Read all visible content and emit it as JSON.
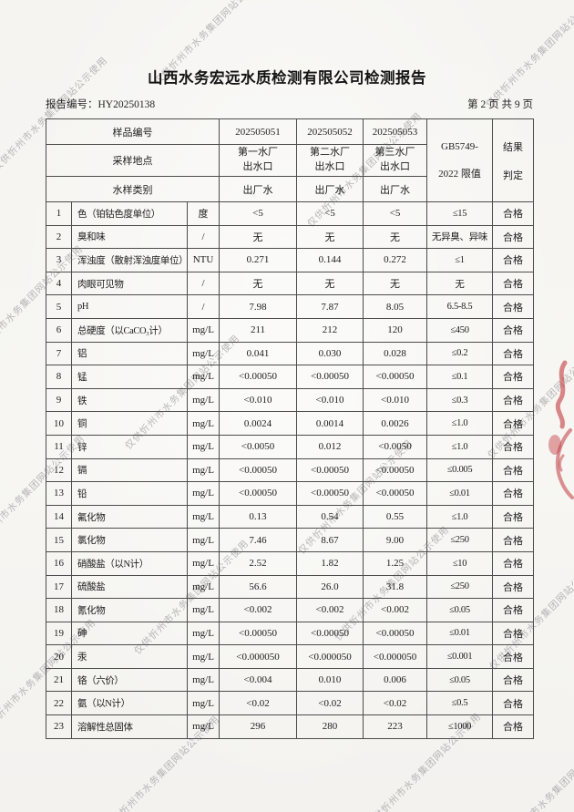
{
  "header": {
    "title": "山西水务宏远水质检测有限公司检测报告",
    "report_no_label": "报告编号：",
    "report_no": "HY20250138",
    "page_info": "第 2 页 共 9 页"
  },
  "watermark": {
    "text": "仅供忻州市水务集团网站公示使用"
  },
  "stamp": {
    "color": "#c13a40"
  },
  "table": {
    "header": {
      "sample_id_label": "样品编号",
      "sampling_site_label": "采样地点",
      "sample_type_label": "水样类别",
      "sample_ids": [
        "202505051",
        "202505052",
        "202505053"
      ],
      "sites": [
        {
          "line1": "第一水厂",
          "line2": "出水口"
        },
        {
          "line1": "第二水厂",
          "line2": "出水口"
        },
        {
          "line1": "第三水厂",
          "line2": "出水口"
        }
      ],
      "sample_types": [
        "出厂水",
        "出厂水",
        "出厂水"
      ],
      "limit_line1": "GB5749-",
      "limit_line2": "2022 限值",
      "result_line1": "结果",
      "result_line2": "判定"
    },
    "rows": [
      {
        "no": "1",
        "name": "色（铂钴色度单位）",
        "unit": "度",
        "v1": "<5",
        "v2": "<5",
        "v3": "<5",
        "limit": "≤15",
        "result": "合格"
      },
      {
        "no": "2",
        "name": "臭和味",
        "unit": "/",
        "v1": "无",
        "v2": "无",
        "v3": "无",
        "limit": "无异臭、异味",
        "result": "合格"
      },
      {
        "no": "3",
        "name": "浑浊度（散射浑浊度单位）",
        "unit": "NTU",
        "v1": "0.271",
        "v2": "0.144",
        "v3": "0.272",
        "limit": "≤1",
        "result": "合格"
      },
      {
        "no": "4",
        "name": "肉眼可见物",
        "unit": "/",
        "v1": "无",
        "v2": "无",
        "v3": "无",
        "limit": "无",
        "result": "合格"
      },
      {
        "no": "5",
        "name": "pH",
        "unit": "/",
        "v1": "7.98",
        "v2": "7.87",
        "v3": "8.05",
        "limit": "6.5-8.5",
        "result": "合格"
      },
      {
        "no": "6",
        "name": "总硬度（以CaCO₃计）",
        "unit": "mg/L",
        "v1": "211",
        "v2": "212",
        "v3": "120",
        "limit": "≤450",
        "result": "合格"
      },
      {
        "no": "7",
        "name": "铝",
        "unit": "mg/L",
        "v1": "0.041",
        "v2": "0.030",
        "v3": "0.028",
        "limit": "≤0.2",
        "result": "合格"
      },
      {
        "no": "8",
        "name": "锰",
        "unit": "mg/L",
        "v1": "<0.00050",
        "v2": "<0.00050",
        "v3": "<0.00050",
        "limit": "≤0.1",
        "result": "合格"
      },
      {
        "no": "9",
        "name": "铁",
        "unit": "mg/L",
        "v1": "<0.010",
        "v2": "<0.010",
        "v3": "<0.010",
        "limit": "≤0.3",
        "result": "合格"
      },
      {
        "no": "10",
        "name": "铜",
        "unit": "mg/L",
        "v1": "0.0024",
        "v2": "0.0014",
        "v3": "0.0026",
        "limit": "≤1.0",
        "result": "合格"
      },
      {
        "no": "11",
        "name": "锌",
        "unit": "mg/L",
        "v1": "<0.0050",
        "v2": "0.012",
        "v3": "<0.0050",
        "limit": "≤1.0",
        "result": "合格"
      },
      {
        "no": "12",
        "name": "镉",
        "unit": "mg/L",
        "v1": "<0.00050",
        "v2": "<0.00050",
        "v3": "<0.00050",
        "limit": "≤0.005",
        "result": "合格"
      },
      {
        "no": "13",
        "name": "铅",
        "unit": "mg/L",
        "v1": "<0.00050",
        "v2": "<0.00050",
        "v3": "<0.00050",
        "limit": "≤0.01",
        "result": "合格"
      },
      {
        "no": "14",
        "name": "氟化物",
        "unit": "mg/L",
        "v1": "0.13",
        "v2": "0.54",
        "v3": "0.55",
        "limit": "≤1.0",
        "result": "合格"
      },
      {
        "no": "15",
        "name": "氯化物",
        "unit": "mg/L",
        "v1": "7.46",
        "v2": "8.67",
        "v3": "9.00",
        "limit": "≤250",
        "result": "合格"
      },
      {
        "no": "16",
        "name": "硝酸盐（以N计）",
        "unit": "mg/L",
        "v1": "2.52",
        "v2": "1.82",
        "v3": "1.25",
        "limit": "≤10",
        "result": "合格"
      },
      {
        "no": "17",
        "name": "硫酸盐",
        "unit": "mg/L",
        "v1": "56.6",
        "v2": "26.0",
        "v3": "31.8",
        "limit": "≤250",
        "result": "合格"
      },
      {
        "no": "18",
        "name": "氰化物",
        "unit": "mg/L",
        "v1": "<0.002",
        "v2": "<0.002",
        "v3": "<0.002",
        "limit": "≤0.05",
        "result": "合格"
      },
      {
        "no": "19",
        "name": "砷",
        "unit": "mg/L",
        "v1": "<0.00050",
        "v2": "<0.00050",
        "v3": "<0.00050",
        "limit": "≤0.01",
        "result": "合格"
      },
      {
        "no": "20",
        "name": "汞",
        "unit": "mg/L",
        "v1": "<0.000050",
        "v2": "<0.000050",
        "v3": "<0.000050",
        "limit": "≤0.001",
        "result": "合格"
      },
      {
        "no": "21",
        "name": "铬（六价）",
        "unit": "mg/L",
        "v1": "<0.004",
        "v2": "0.010",
        "v3": "0.006",
        "limit": "≤0.05",
        "result": "合格"
      },
      {
        "no": "22",
        "name": "氨（以N计）",
        "unit": "mg/L",
        "v1": "<0.02",
        "v2": "<0.02",
        "v3": "<0.02",
        "limit": "≤0.5",
        "result": "合格"
      },
      {
        "no": "23",
        "name": "溶解性总固体",
        "unit": "mg/L",
        "v1": "296",
        "v2": "280",
        "v3": "223",
        "limit": "≤1000",
        "result": "合格"
      }
    ]
  }
}
